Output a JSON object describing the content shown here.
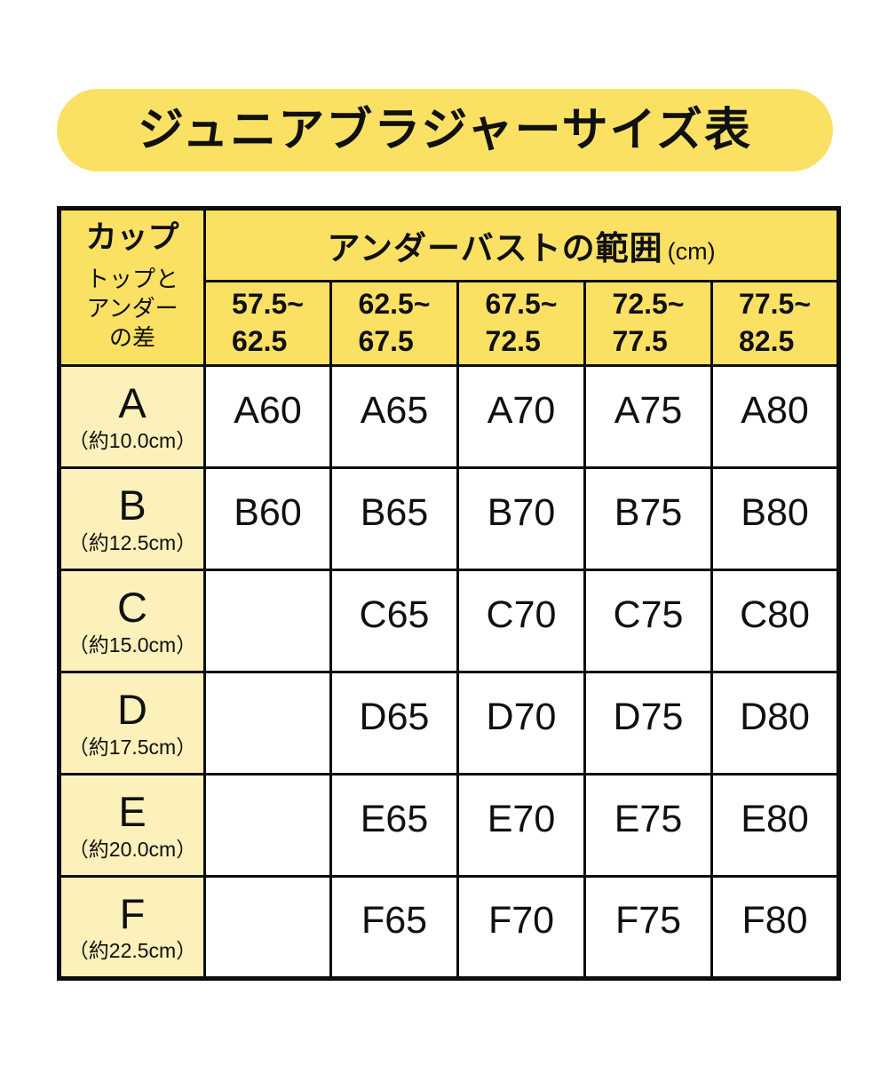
{
  "title": "ジュニアブラジャーサイズ表",
  "colors": {
    "yellow": "#FAE164",
    "pale_yellow": "#FCF0BB",
    "border": "#0d0d0d",
    "text": "#101010",
    "cell_background": "#ffffff"
  },
  "table": {
    "cup_header": {
      "label": "カップ",
      "sublabel_lines": [
        "トップと",
        "アンダー",
        "の差"
      ]
    },
    "underbust_header": {
      "title": "アンダーバストの範囲",
      "unit": "(cm)"
    },
    "columns": [
      {
        "line1": "57.5~",
        "line2": "62.5"
      },
      {
        "line1": "62.5~",
        "line2": "67.5"
      },
      {
        "line1": "67.5~",
        "line2": "72.5"
      },
      {
        "line1": "72.5~",
        "line2": "77.5"
      },
      {
        "line1": "77.5~",
        "line2": "82.5"
      }
    ],
    "rows": [
      {
        "cup": "A",
        "diff": "（約10.0cm）",
        "cells": [
          "A60",
          "A65",
          "A70",
          "A75",
          "A80"
        ]
      },
      {
        "cup": "B",
        "diff": "（約12.5cm）",
        "cells": [
          "B60",
          "B65",
          "B70",
          "B75",
          "B80"
        ]
      },
      {
        "cup": "C",
        "diff": "（約15.0cm）",
        "cells": [
          "",
          "C65",
          "C70",
          "C75",
          "C80"
        ]
      },
      {
        "cup": "D",
        "diff": "（約17.5cm）",
        "cells": [
          "",
          "D65",
          "D70",
          "D75",
          "D80"
        ]
      },
      {
        "cup": "E",
        "diff": "（約20.0cm）",
        "cells": [
          "",
          "E65",
          "E70",
          "E75",
          "E80"
        ]
      },
      {
        "cup": "F",
        "diff": "（約22.5cm）",
        "cells": [
          "",
          "F65",
          "F70",
          "F75",
          "F80"
        ]
      }
    ]
  },
  "chart_data": {
    "type": "table",
    "title": "ジュニアブラジャーサイズ表",
    "column_group_label": "アンダーバストの範囲 (cm)",
    "columns": [
      "57.5~62.5",
      "62.5~67.5",
      "67.5~72.5",
      "72.5~77.5",
      "77.5~82.5"
    ],
    "row_header_label": "カップ トップとアンダーの差",
    "rows": [
      {
        "cup": "A",
        "top_under_diff_cm": "約10.0cm",
        "sizes": [
          "A60",
          "A65",
          "A70",
          "A75",
          "A80"
        ]
      },
      {
        "cup": "B",
        "top_under_diff_cm": "約12.5cm",
        "sizes": [
          "B60",
          "B65",
          "B70",
          "B75",
          "B80"
        ]
      },
      {
        "cup": "C",
        "top_under_diff_cm": "約15.0cm",
        "sizes": [
          null,
          "C65",
          "C70",
          "C75",
          "C80"
        ]
      },
      {
        "cup": "D",
        "top_under_diff_cm": "約17.5cm",
        "sizes": [
          null,
          "D65",
          "D70",
          "D75",
          "D80"
        ]
      },
      {
        "cup": "E",
        "top_under_diff_cm": "約20.0cm",
        "sizes": [
          null,
          "E65",
          "E70",
          "E75",
          "E80"
        ]
      },
      {
        "cup": "F",
        "top_under_diff_cm": "約22.5cm",
        "sizes": [
          null,
          "F65",
          "F70",
          "F75",
          "F80"
        ]
      }
    ]
  }
}
